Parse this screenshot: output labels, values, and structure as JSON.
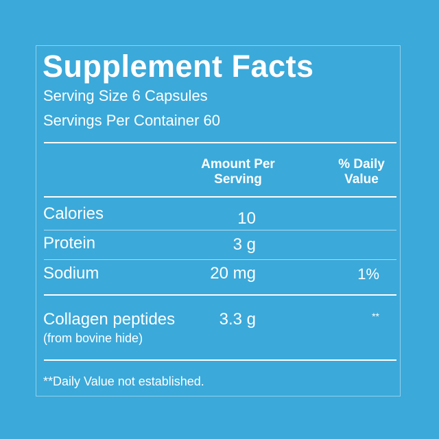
{
  "title": "Supplement Facts",
  "serving_size": "Serving Size 6 Capsules",
  "servings_per_container": "Servings Per Container 60",
  "table": {
    "headers": [
      "Amount Per Serving",
      "% Daily Value"
    ],
    "rows": [
      {
        "name": "Calories",
        "amount": "10"
      },
      {
        "name": "Protein",
        "amount": "3 g"
      },
      {
        "name": "Sodium",
        "amount": "20 mg",
        "daily_value": "1%"
      },
      {
        "name": "Collagen peptides",
        "note": "(from bovine hide)",
        "amount": "3.3 g",
        "daily_value": "**"
      }
    ]
  },
  "footnote": "**Daily Value not established."
}
